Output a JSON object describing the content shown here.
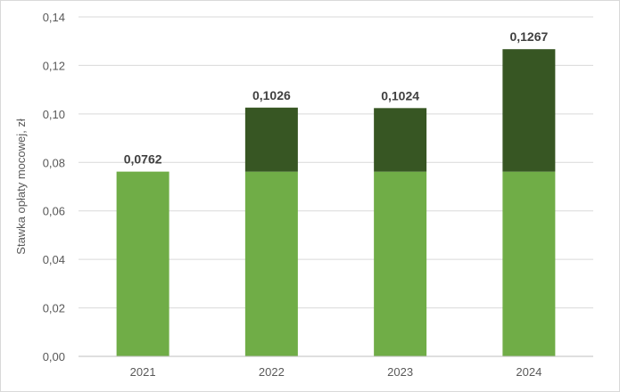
{
  "chart_data": {
    "type": "bar",
    "stacked": true,
    "title": "",
    "xlabel": "",
    "ylabel": "Stawka opłaty mocowej, zł",
    "ylim": [
      0,
      0.14
    ],
    "yticks": [
      0,
      0.02,
      0.04,
      0.06,
      0.08,
      0.1,
      0.12,
      0.14
    ],
    "ytick_labels": [
      "0,00",
      "0,02",
      "0,04",
      "0,06",
      "0,08",
      "0,10",
      "0,12",
      "0,14"
    ],
    "grid": true,
    "legend": "none",
    "categories": [
      "2021",
      "2022",
      "2023",
      "2024"
    ],
    "series": [
      {
        "color": "#70ad47",
        "values": [
          0.0762,
          0.0762,
          0.0762,
          0.0762
        ]
      },
      {
        "color": "#375623",
        "values": [
          0,
          0.0264,
          0.0262,
          0.0505
        ]
      }
    ],
    "totals": [
      0.0762,
      0.1026,
      0.1024,
      0.1267
    ],
    "total_labels": [
      "0,0762",
      "0,1026",
      "0,1024",
      "0,1267"
    ]
  }
}
